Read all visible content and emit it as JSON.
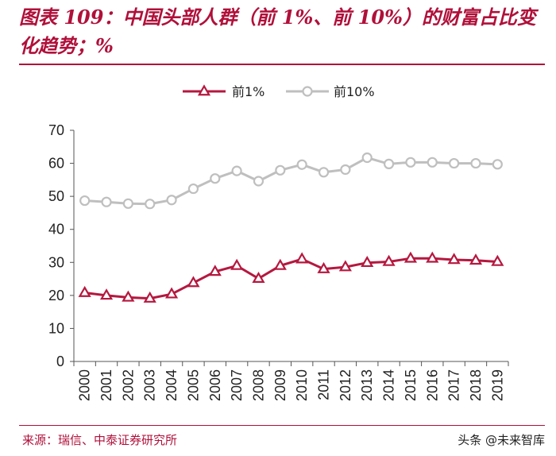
{
  "header": {
    "title": "图表 109：中国头部人群（前 1%、前 10%）的财富占比变化趋势；%"
  },
  "footer": {
    "source": "来源：瑞信、中泰证券研究所",
    "watermark": "头条 @未来智库"
  },
  "colors": {
    "accent": "#b0103a",
    "series1": "#b5183f",
    "series2": "#bfbfbf"
  },
  "chart_data": {
    "type": "line",
    "title": "",
    "xlabel": "",
    "ylabel": "",
    "x": [
      "2000",
      "2001",
      "2002",
      "2003",
      "2004",
      "2005",
      "2006",
      "2007",
      "2008",
      "2009",
      "2010",
      "2011",
      "2012",
      "2013",
      "2014",
      "2015",
      "2016",
      "2017",
      "2018",
      "2019"
    ],
    "ylim": [
      0,
      70
    ],
    "yticks": [
      0,
      10,
      20,
      30,
      40,
      50,
      60,
      70
    ],
    "grid": false,
    "legend_position": "top",
    "series": [
      {
        "name": "前1%",
        "marker": "triangle",
        "values": [
          20.8,
          20.0,
          19.4,
          19.1,
          20.4,
          23.8,
          27.2,
          29.0,
          25.1,
          29.0,
          31.0,
          28.0,
          28.6,
          29.9,
          30.2,
          31.2,
          31.2,
          30.8,
          30.6,
          30.2
        ]
      },
      {
        "name": "前10%",
        "marker": "circle",
        "values": [
          48.7,
          48.3,
          47.8,
          47.7,
          48.9,
          52.3,
          55.4,
          57.7,
          54.6,
          57.9,
          59.6,
          57.3,
          58.1,
          61.7,
          59.8,
          60.3,
          60.3,
          60.0,
          60.0,
          59.7
        ]
      }
    ]
  }
}
